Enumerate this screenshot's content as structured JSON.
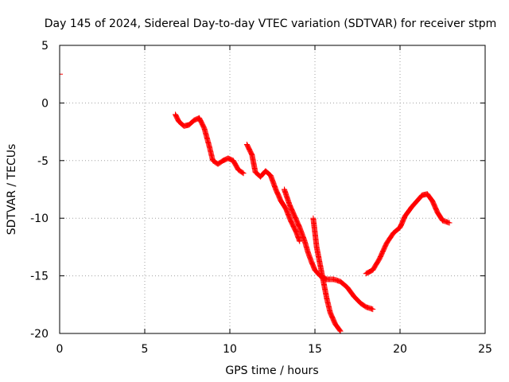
{
  "chart_data": {
    "type": "scatter",
    "title": "Day 145 of 2024, Sidereal Day-to-day VTEC variation (SDTVAR) for receiver stpm",
    "xlabel": "GPS time / hours",
    "ylabel": "SDTVAR / TECUs",
    "xlim": [
      0,
      25
    ],
    "ylim": [
      -20,
      5
    ],
    "xticks": [
      "0",
      "5",
      "10",
      "15",
      "20",
      "25"
    ],
    "yticks": [
      "5",
      "0",
      "-5",
      "-10",
      "-15",
      "-20"
    ],
    "grid": true,
    "marker": "plus",
    "series_color": "#ff0000",
    "series": [
      {
        "name": "SDTVAR",
        "segments": [
          [
            [
              0.0,
              2.5
            ]
          ],
          [
            [
              6.8,
              -1.0
            ],
            [
              7.0,
              -1.6
            ],
            [
              7.3,
              -2.0
            ],
            [
              7.6,
              -1.9
            ],
            [
              7.9,
              -1.5
            ],
            [
              8.2,
              -1.3
            ],
            [
              8.5,
              -2.2
            ],
            [
              8.8,
              -3.8
            ],
            [
              9.0,
              -5.0
            ],
            [
              9.3,
              -5.3
            ],
            [
              9.6,
              -5.0
            ],
            [
              9.9,
              -4.8
            ],
            [
              10.2,
              -5.0
            ],
            [
              10.5,
              -5.8
            ],
            [
              10.8,
              -6.1
            ]
          ],
          [
            [
              11.0,
              -3.6
            ],
            [
              11.3,
              -4.5
            ],
            [
              11.5,
              -6.0
            ],
            [
              11.8,
              -6.4
            ],
            [
              12.1,
              -5.9
            ],
            [
              12.4,
              -6.3
            ],
            [
              12.7,
              -7.5
            ],
            [
              13.0,
              -8.5
            ],
            [
              13.3,
              -9.2
            ],
            [
              13.6,
              -10.3
            ],
            [
              13.9,
              -11.2
            ],
            [
              14.1,
              -12.0
            ]
          ],
          [
            [
              13.2,
              -7.5
            ],
            [
              13.5,
              -8.8
            ],
            [
              13.8,
              -9.8
            ],
            [
              14.1,
              -10.8
            ],
            [
              14.4,
              -12.0
            ],
            [
              14.6,
              -13.0
            ],
            [
              14.8,
              -13.8
            ],
            [
              15.0,
              -14.5
            ],
            [
              15.3,
              -15.0
            ],
            [
              15.7,
              -15.3
            ],
            [
              16.1,
              -15.3
            ],
            [
              16.5,
              -15.5
            ],
            [
              16.9,
              -16.0
            ],
            [
              17.3,
              -16.8
            ],
            [
              17.7,
              -17.4
            ],
            [
              18.0,
              -17.7
            ],
            [
              18.4,
              -17.9
            ]
          ],
          [
            [
              14.9,
              -10.0
            ],
            [
              15.1,
              -12.5
            ],
            [
              15.3,
              -14.0
            ],
            [
              15.5,
              -15.5
            ],
            [
              15.7,
              -17.0
            ],
            [
              15.9,
              -18.2
            ],
            [
              16.2,
              -19.2
            ],
            [
              16.5,
              -19.8
            ]
          ],
          [
            [
              18.0,
              -14.8
            ],
            [
              18.4,
              -14.5
            ],
            [
              18.8,
              -13.5
            ],
            [
              19.2,
              -12.2
            ],
            [
              19.6,
              -11.3
            ],
            [
              20.0,
              -10.8
            ],
            [
              20.3,
              -9.8
            ],
            [
              20.7,
              -9.0
            ],
            [
              21.0,
              -8.5
            ],
            [
              21.3,
              -8.0
            ],
            [
              21.6,
              -7.9
            ],
            [
              21.9,
              -8.5
            ],
            [
              22.2,
              -9.5
            ],
            [
              22.5,
              -10.2
            ],
            [
              22.9,
              -10.4
            ]
          ]
        ]
      }
    ]
  }
}
